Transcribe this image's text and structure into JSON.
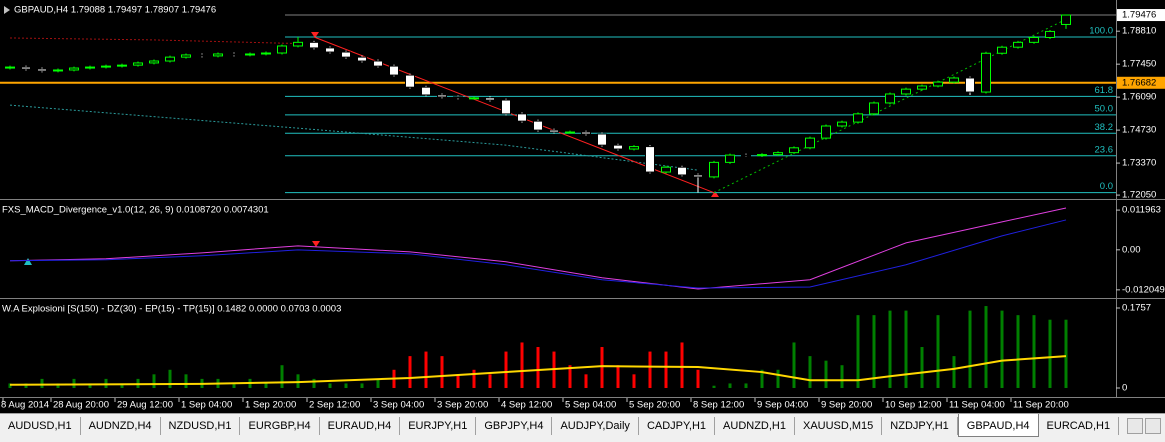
{
  "tabs": [
    "AUDUSD,H1",
    "AUDNZD,H4",
    "NZDUSD,H1",
    "EURGBP,H4",
    "EURAUD,H4",
    "EURJPY,H1",
    "GBPJPY,H4",
    "AUDJPY,Daily",
    "CADJPY,H1",
    "AUDNZD,H1",
    "XAUUSD,M15",
    "NZDJPY,H1",
    "GBPAUD,H4",
    "EURCAD,H1"
  ],
  "active_tab": "GBPAUD,H4",
  "chart_data": [
    {
      "type": "candlestick",
      "title": "GBPAUD,H4  1.79088 1.79497 1.78907 1.79476",
      "categories": [
        "8 Aug 2014",
        null,
        null,
        "28 Aug 20:00",
        null,
        null,
        null,
        "29 Aug 12:00",
        null,
        null,
        null,
        "1 Sep 04:00",
        null,
        null,
        null,
        "1 Sep 20:00",
        null,
        null,
        null,
        "2 Sep 12:00",
        null,
        null,
        null,
        "3 Sep 04:00",
        null,
        null,
        null,
        "3 Sep 20:00",
        null,
        null,
        null,
        "4 Sep 12:00",
        null,
        null,
        null,
        "5 Sep 04:00",
        null,
        null,
        null,
        "5 Sep 20:00",
        null,
        null,
        null,
        "8 Sep 12:00",
        null,
        null,
        null,
        "9 Sep 04:00",
        null,
        null,
        null,
        "9 Sep 20:00",
        null,
        null,
        null,
        "10 Sep 12:00",
        null,
        null,
        null,
        "11 Sep 04:00",
        null,
        null,
        null,
        "11 Sep 20:00",
        null,
        null,
        null
      ],
      "open": [
        1.7729,
        1.7733,
        1.7725,
        1.7717,
        1.7721,
        1.7729,
        1.7733,
        1.7737,
        1.7741,
        1.775,
        1.7758,
        1.7774,
        1.7783,
        1.7779,
        1.7787,
        1.7783,
        1.7787,
        1.7791,
        1.782,
        1.7835,
        1.7812,
        1.7795,
        1.7774,
        1.7758,
        1.7737,
        1.77,
        1.765,
        1.7618,
        1.761,
        1.7606,
        1.7606,
        1.7597,
        1.754,
        1.751,
        1.7473,
        1.7465,
        1.7465,
        1.7457,
        1.7411,
        1.7395,
        1.7405,
        1.73,
        1.732,
        1.7288,
        1.728,
        1.734,
        1.737,
        1.7368,
        1.7372,
        1.738,
        1.74,
        1.744,
        1.749,
        1.7506,
        1.754,
        1.7585,
        1.7622,
        1.7642,
        1.7655,
        1.7671,
        1.7688,
        1.763,
        1.779,
        1.7815,
        1.7835,
        1.7855,
        1.79088
      ],
      "high": [
        1.7739,
        1.7739,
        1.7731,
        1.7727,
        1.7735,
        1.7739,
        1.7743,
        1.7747,
        1.7756,
        1.7764,
        1.778,
        1.7789,
        1.7789,
        1.7793,
        1.7793,
        1.7793,
        1.7797,
        1.7826,
        1.7857,
        1.7841,
        1.7818,
        1.7801,
        1.778,
        1.7764,
        1.7743,
        1.7706,
        1.7656,
        1.7624,
        1.7616,
        1.7612,
        1.7612,
        1.7603,
        1.7546,
        1.7516,
        1.7479,
        1.7471,
        1.7471,
        1.7463,
        1.7417,
        1.7411,
        1.7411,
        1.7326,
        1.7326,
        1.7294,
        1.7346,
        1.7376,
        1.7376,
        1.7378,
        1.7386,
        1.7406,
        1.7446,
        1.7496,
        1.7512,
        1.7546,
        1.7591,
        1.7628,
        1.7648,
        1.7661,
        1.7677,
        1.7694,
        1.7694,
        1.7796,
        1.7821,
        1.7841,
        1.7861,
        1.7886,
        1.79497
      ],
      "low": [
        1.7723,
        1.7719,
        1.7711,
        1.7711,
        1.7715,
        1.7723,
        1.7727,
        1.7731,
        1.7735,
        1.7744,
        1.7752,
        1.7768,
        1.7773,
        1.7773,
        1.7777,
        1.7777,
        1.7781,
        1.7785,
        1.7814,
        1.7806,
        1.7789,
        1.7768,
        1.7752,
        1.7731,
        1.7694,
        1.7644,
        1.7612,
        1.7604,
        1.76,
        1.76,
        1.7591,
        1.7534,
        1.7504,
        1.7467,
        1.7459,
        1.7459,
        1.7451,
        1.7405,
        1.7389,
        1.7389,
        1.7294,
        1.7294,
        1.7282,
        1.7215,
        1.7274,
        1.7334,
        1.7362,
        1.7362,
        1.7366,
        1.7374,
        1.7394,
        1.7434,
        1.7484,
        1.75,
        1.7534,
        1.7579,
        1.7616,
        1.7636,
        1.7649,
        1.7665,
        1.7618,
        1.7624,
        1.7784,
        1.7809,
        1.7829,
        1.7849,
        1.78907
      ],
      "close": [
        1.7733,
        1.7725,
        1.7717,
        1.7721,
        1.7729,
        1.7733,
        1.7737,
        1.7741,
        1.775,
        1.7758,
        1.7774,
        1.7783,
        1.7779,
        1.7787,
        1.7783,
        1.7787,
        1.7791,
        1.782,
        1.7835,
        1.7812,
        1.7795,
        1.7774,
        1.7758,
        1.7737,
        1.77,
        1.765,
        1.7618,
        1.761,
        1.7606,
        1.7606,
        1.7597,
        1.754,
        1.751,
        1.7473,
        1.7465,
        1.7465,
        1.7457,
        1.7411,
        1.7395,
        1.7405,
        1.73,
        1.732,
        1.7288,
        1.728,
        1.734,
        1.737,
        1.7368,
        1.7372,
        1.738,
        1.74,
        1.744,
        1.749,
        1.7506,
        1.754,
        1.7585,
        1.7622,
        1.7642,
        1.7655,
        1.7671,
        1.7688,
        1.763,
        1.779,
        1.7815,
        1.7835,
        1.7855,
        1.788,
        1.79476
      ],
      "up_color": "#00ff00",
      "down_color": "#ffffff",
      "ylim": [
        1.7193,
        1.7989
      ],
      "yticks": [
        {
          "value": 1.7881,
          "label": "1.78810"
        },
        {
          "value": 1.7745,
          "label": "1.77450"
        },
        {
          "value": 1.7609,
          "label": "1.76090"
        },
        {
          "value": 1.7473,
          "label": "1.74730"
        },
        {
          "value": 1.7337,
          "label": "1.73370"
        },
        {
          "value": 1.7205,
          "label": "1.72050"
        }
      ],
      "current_price": {
        "value": 1.79476,
        "label": "1.79476"
      },
      "level": {
        "value": 1.76682,
        "label": "1.76682",
        "color": "#ffa500"
      },
      "fib_color": "#20c0c0",
      "fib_levels": [
        {
          "label": "100.0",
          "price": 1.7857
        },
        {
          "label": "61.8",
          "price": 1.7612
        },
        {
          "label": "50.0",
          "price": 1.7536
        },
        {
          "label": "38.2",
          "price": 1.746
        },
        {
          "label": "23.6",
          "price": 1.7367
        },
        {
          "label": "0.0",
          "price": 1.7215
        }
      ],
      "overlays": [
        {
          "color": "#a01010",
          "dash": "2,2",
          "x": [
            0,
            9,
            18
          ],
          "values": [
            1.7853,
            1.7845,
            1.783
          ]
        },
        {
          "color": "#2a9a9a",
          "dash": "2,2",
          "x": [
            0,
            18,
            31,
            43
          ],
          "values": [
            1.7576,
            1.7481,
            1.7411,
            1.7308
          ]
        },
        {
          "color": "#ff2020",
          "dash": "",
          "x": [
            19,
            44
          ],
          "values": [
            1.7857,
            1.7215
          ]
        },
        {
          "color": "#00c000",
          "dash": "2,3",
          "x": [
            44,
            66
          ],
          "values": [
            1.7215,
            1.793
          ]
        }
      ]
    },
    {
      "type": "line",
      "title": "FXS_MACD_Divergence_v1.0(12, 26, 9) 0.0108720 0.0074301",
      "x": [
        0,
        6,
        12,
        18,
        25,
        31,
        37,
        43,
        50,
        56,
        62,
        66
      ],
      "series": [
        {
          "color": "#e040e0",
          "values": [
            -0.0033,
            -0.0027,
            -0.0009,
            0.0012,
            -0.0006,
            -0.0036,
            -0.0084,
            -0.0118,
            -0.009,
            0.0021,
            0.0084,
            0.0126
          ]
        },
        {
          "color": "#2020e0",
          "values": [
            -0.0033,
            -0.003,
            -0.0018,
            0,
            -0.0012,
            -0.0045,
            -0.009,
            -0.0115,
            -0.0112,
            -0.0045,
            0.0042,
            0.009
          ]
        }
      ],
      "ylim": [
        -0.0142,
        0.015
      ],
      "yticks": [
        0.011963,
        {
          "value": 0,
          "label": "0.00"
        },
        -0.012049
      ]
    },
    {
      "type": "bar",
      "title": "W.A Explosioni [S(150) - DZ(30) - EP(15) - TP(15)] 0.1482 0.0000 0.0703 0.0003",
      "series": [
        {
          "color": "#ff0000",
          "values": [
            null,
            null,
            null,
            null,
            null,
            null,
            null,
            null,
            null,
            null,
            null,
            null,
            null,
            null,
            null,
            null,
            null,
            null,
            null,
            null,
            null,
            null,
            null,
            null,
            0.04,
            0.07,
            0.08,
            0.07,
            0.03,
            0.04,
            0.03,
            0.08,
            0.1,
            0.09,
            0.08,
            0.05,
            0.03,
            0.09,
            0.05,
            0.03,
            0.08,
            0.08,
            0.1,
            0.04,
            null,
            null,
            null,
            null,
            null,
            null,
            null,
            null,
            null,
            null,
            null,
            null,
            null,
            null,
            null,
            null,
            null,
            null,
            null,
            null,
            null,
            null,
            null
          ]
        },
        {
          "color": "#008000",
          "values": [
            0.01,
            0.01,
            0.02,
            0.01,
            0.02,
            0.01,
            0.02,
            0.01,
            0.02,
            0.03,
            0.04,
            0.03,
            0.02,
            0.02,
            0.01,
            0.02,
            0.01,
            0.05,
            0.03,
            0.02,
            0.01,
            0.01,
            0.01,
            0.02,
            null,
            null,
            null,
            null,
            null,
            null,
            null,
            null,
            null,
            null,
            null,
            null,
            null,
            null,
            null,
            null,
            null,
            null,
            null,
            null,
            0.005,
            0.01,
            0.01,
            0.04,
            0.04,
            0.1,
            0.07,
            0.06,
            0.05,
            0.16,
            0.16,
            0.17,
            0.17,
            0.09,
            0.16,
            0.07,
            0.17,
            0.18,
            0.17,
            0.16,
            0.16,
            0.15,
            0.15
          ]
        }
      ],
      "lines": [
        {
          "color": "#ffd700",
          "x": [
            0,
            12,
            18,
            25,
            31,
            37,
            43,
            47,
            50,
            53,
            56,
            59,
            62,
            66
          ],
          "values": [
            0.007,
            0.009,
            0.013,
            0.022,
            0.035,
            0.048,
            0.046,
            0.035,
            0.017,
            0.017,
            0.03,
            0.042,
            0.06,
            0.07
          ]
        }
      ],
      "ylim": [
        -0.0198,
        0.1955
      ],
      "yticks": [
        0.1757,
        0
      ]
    }
  ]
}
